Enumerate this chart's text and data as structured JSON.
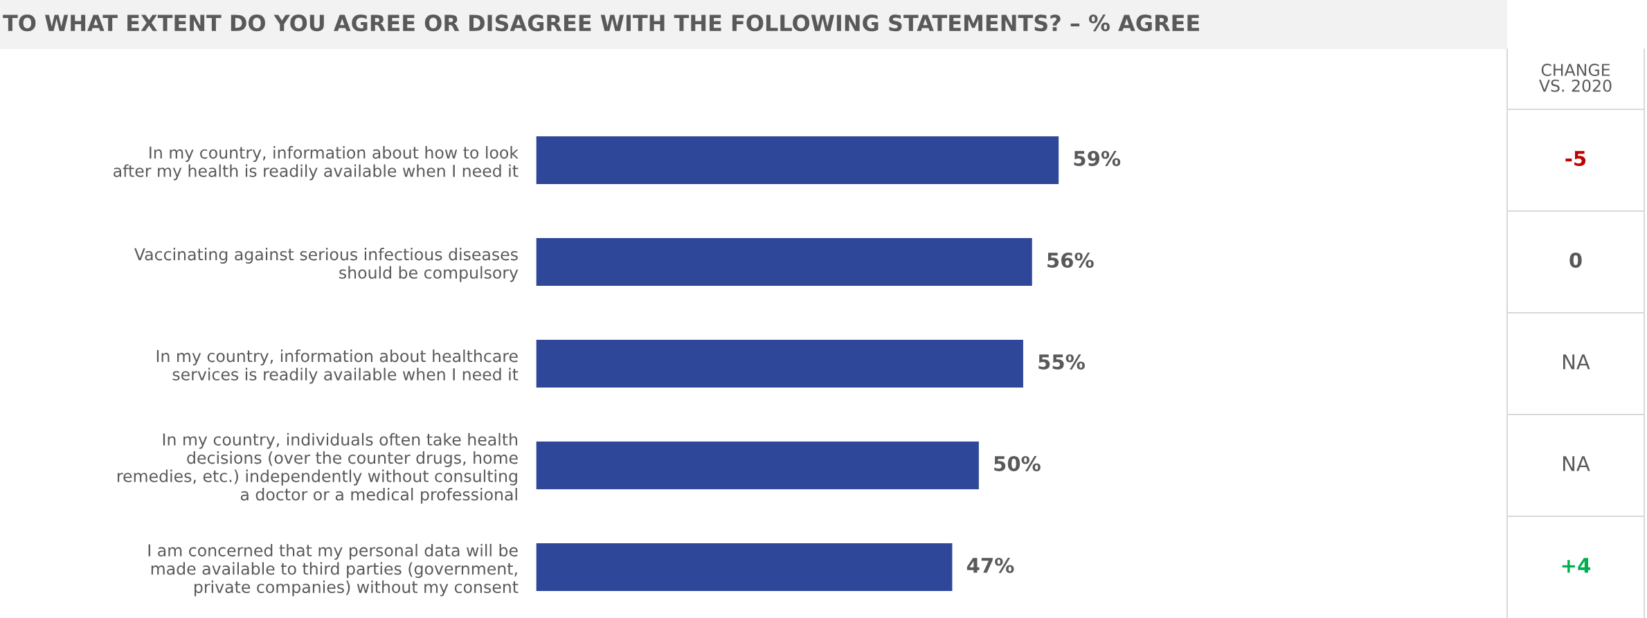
{
  "chart_data": {
    "type": "bar",
    "orientation": "horizontal",
    "title": "TO WHAT EXTENT DO YOU AGREE OR DISAGREE WITH THE FOLLOWING STATEMENTS? – % AGREE",
    "categories": [
      "In my country, information about how to look\nafter my health is readily available when I need it",
      "Vaccinating against serious infectious diseases\nshould be compulsory",
      "In my country, information about healthcare\nservices is readily available when I need it",
      "In my country, individuals often take health\ndecisions (over the counter drugs, home\nremedies, etc.) independently without consulting\na doctor or a medical professional",
      "I am concerned that my personal data will be\nmade available to third parties (government,\nprivate companies) without my consent"
    ],
    "values": [
      59,
      56,
      55,
      50,
      47
    ],
    "value_labels": [
      "59%",
      "56%",
      "55%",
      "50%",
      "47%"
    ],
    "color": "#2e4799",
    "tick_labels": "y",
    "grid": false,
    "legend": false,
    "annotations": [
      "CHANGE\nVS. 2020",
      "-5",
      "0",
      "NA",
      "NA",
      "+4"
    ]
  }
}
